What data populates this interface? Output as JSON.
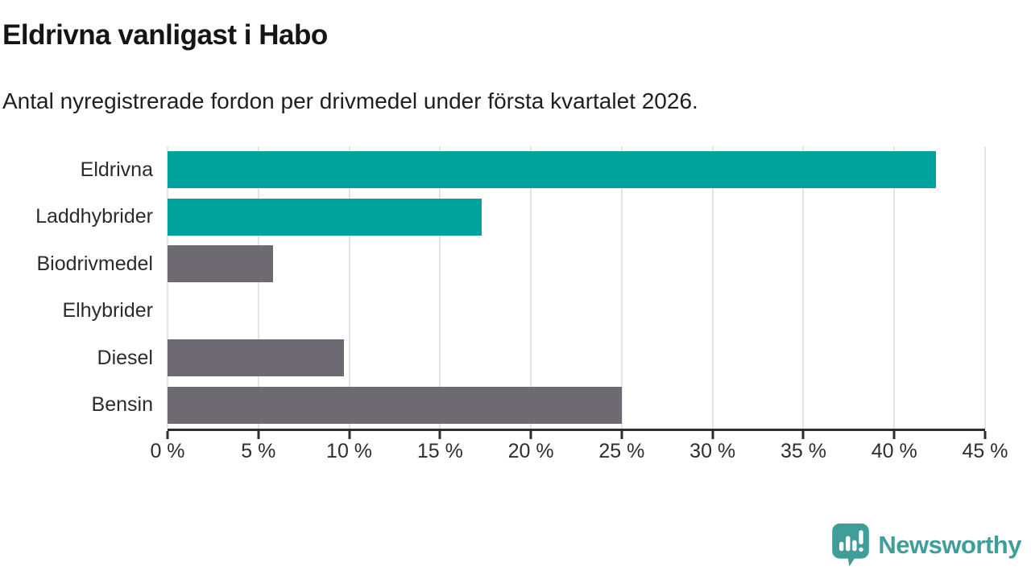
{
  "header": {
    "title": "Eldrivna vanligast i Habo",
    "subtitle": "Antal nyregistrerade fordon per drivmedel under första kvartalet 2026."
  },
  "chart_data": {
    "type": "bar",
    "orientation": "horizontal",
    "title": "Eldrivna vanligast i Habo",
    "subtitle": "Antal nyregistrerade fordon per drivmedel under första kvartalet 2026.",
    "categories": [
      "Eldrivna",
      "Laddhybrider",
      "Biodrivmedel",
      "Elhybrider",
      "Diesel",
      "Bensin"
    ],
    "values": [
      42.3,
      17.3,
      5.8,
      0,
      9.7,
      25.0
    ],
    "unit": "%",
    "bar_colors": [
      "#00a39b",
      "#00a39b",
      "#6e6a71",
      "#6e6a71",
      "#6e6a71",
      "#6e6a71"
    ],
    "xlim": [
      0,
      45
    ],
    "x_ticks": [
      0,
      5,
      10,
      15,
      20,
      25,
      30,
      35,
      40,
      45
    ],
    "x_tick_labels": [
      "0 %",
      "5 %",
      "10 %",
      "15 %",
      "20 %",
      "25 %",
      "30 %",
      "35 %",
      "40 %",
      "45 %"
    ],
    "grid": "vertical",
    "legend": "none"
  },
  "colors": {
    "teal": "#00a39b",
    "gray": "#6e6a71",
    "axis": "#2e2e2e",
    "gridline": "#e4e4e4",
    "logo": "#3f9e98"
  },
  "footer": {
    "brand": "Newsworthy"
  }
}
